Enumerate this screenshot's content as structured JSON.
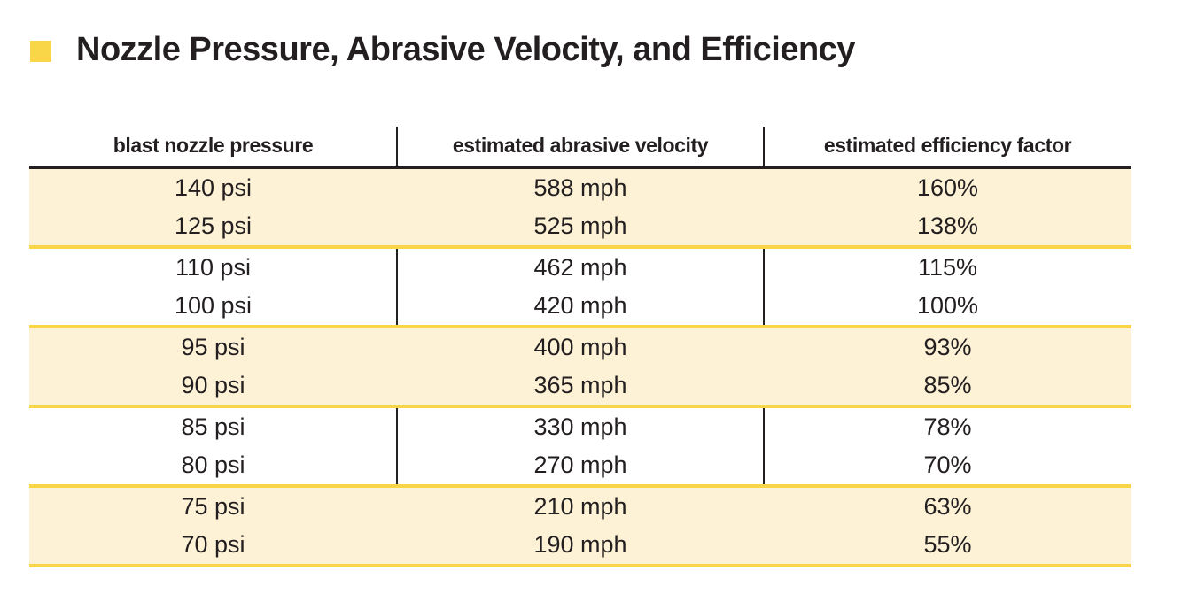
{
  "title": "Nozzle Pressure, Abrasive Velocity, and Efficiency",
  "colors": {
    "accent": "#f8d648",
    "band_fill": "#fdf2d5",
    "text": "#231f20"
  },
  "table": {
    "headers": [
      "blast nozzle pressure",
      "estimated abrasive velocity",
      "estimated efficiency factor"
    ],
    "bands": [
      {
        "shaded": true,
        "rows": [
          [
            "140 psi",
            "588 mph",
            "160%"
          ],
          [
            "125 psi",
            "525 mph",
            "138%"
          ]
        ]
      },
      {
        "shaded": false,
        "rows": [
          [
            "110 psi",
            "462 mph",
            "115%"
          ],
          [
            "100 psi",
            "420 mph",
            "100%"
          ]
        ]
      },
      {
        "shaded": true,
        "rows": [
          [
            "95 psi",
            "400 mph",
            "93%"
          ],
          [
            "90 psi",
            "365 mph",
            "85%"
          ]
        ]
      },
      {
        "shaded": false,
        "rows": [
          [
            "85 psi",
            "330 mph",
            "78%"
          ],
          [
            "80 psi",
            "270 mph",
            "70%"
          ]
        ]
      },
      {
        "shaded": true,
        "rows": [
          [
            "75 psi",
            "210 mph",
            "63%"
          ],
          [
            "70 psi",
            "190 mph",
            "55%"
          ]
        ]
      }
    ]
  }
}
